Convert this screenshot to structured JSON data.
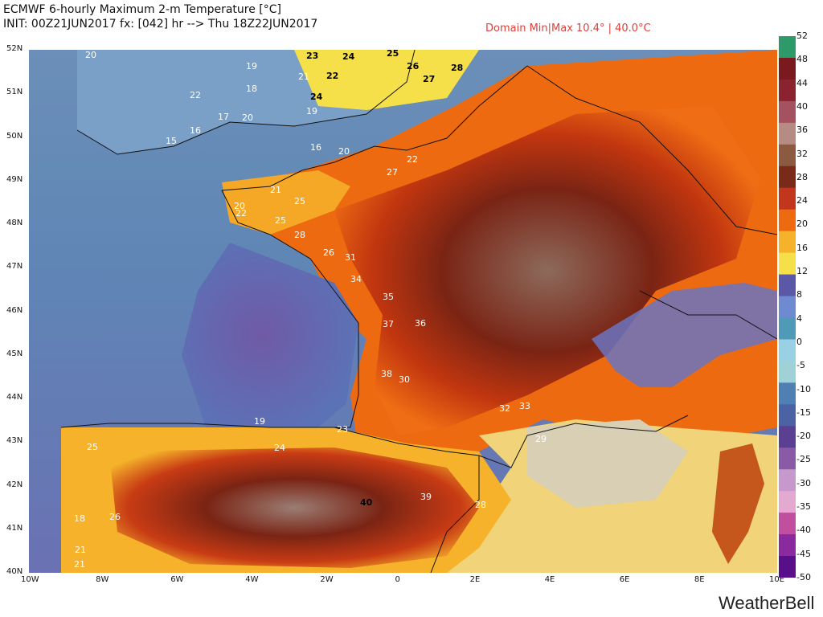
{
  "header": {
    "title_line1": "ECMWF 6-hourly Maximum 2-m Temperature [°C]",
    "title_line2": "INIT: 00Z21JUN2017 fx: [042] hr --> Thu 18Z22JUN2017",
    "domain_minmax": "Domain Min|Max 10.4° | 40.0°C"
  },
  "lat_labels": [
    "52N",
    "51N",
    "50N",
    "49N",
    "48N",
    "47N",
    "46N",
    "45N",
    "44N",
    "43N",
    "42N",
    "41N",
    "40N"
  ],
  "lon_labels": [
    "10W",
    "8W",
    "6W",
    "4W",
    "2W",
    "0",
    "2E",
    "4E",
    "6E",
    "8E",
    "10E"
  ],
  "colorbar": {
    "ticks": [
      "52",
      "48",
      "44",
      "40",
      "36",
      "32",
      "28",
      "24",
      "20",
      "16",
      "12",
      "8",
      "4",
      "0",
      "-5",
      "-10",
      "-15",
      "-20",
      "-25",
      "-30",
      "-35",
      "-40",
      "-45",
      "-50"
    ],
    "colors": [
      "#2e9a6a",
      "#7a1a1f",
      "#8b2230",
      "#a4525f",
      "#b58b84",
      "#8b5a40",
      "#7a2a18",
      "#c3361e",
      "#ee6a10",
      "#f5b22a",
      "#f6e04a",
      "#5c58a8",
      "#6e8ad0",
      "#4f9ab6",
      "#9ad0e4",
      "#9fd2d6",
      "#4f7fb3",
      "#4b63a5",
      "#5a3f93",
      "#8a5aa6",
      "#c798cc",
      "#e3a9d0",
      "#c04f9f",
      "#8a2a9e",
      "#5a0f8a"
    ]
  },
  "map_labels": [
    {
      "t": "20",
      "c": "w"
    },
    {
      "t": "19",
      "c": "w"
    },
    {
      "t": "18",
      "c": "w"
    },
    {
      "t": "21",
      "c": "w"
    },
    {
      "t": "24",
      "c": "d"
    },
    {
      "t": "22",
      "c": "d"
    },
    {
      "t": "23",
      "c": "d"
    },
    {
      "t": "24",
      "c": "d"
    },
    {
      "t": "25",
      "c": "d"
    },
    {
      "t": "26",
      "c": "d"
    },
    {
      "t": "27",
      "c": "d"
    },
    {
      "t": "28",
      "c": "d"
    },
    {
      "t": "22",
      "c": "w"
    },
    {
      "t": "20",
      "c": "w"
    },
    {
      "t": "17",
      "c": "w"
    },
    {
      "t": "15",
      "c": "w"
    },
    {
      "t": "16",
      "c": "w"
    },
    {
      "t": "19",
      "c": "w"
    },
    {
      "t": "16",
      "c": "w"
    },
    {
      "t": "20",
      "c": "w"
    },
    {
      "t": "22",
      "c": "w"
    },
    {
      "t": "27",
      "c": "w"
    },
    {
      "t": "21",
      "c": "w"
    },
    {
      "t": "25",
      "c": "w"
    },
    {
      "t": "20",
      "c": "w"
    },
    {
      "t": "22",
      "c": "w"
    },
    {
      "t": "25",
      "c": "w"
    },
    {
      "t": "28",
      "c": "w"
    },
    {
      "t": "26",
      "c": "w"
    },
    {
      "t": "31",
      "c": "w"
    },
    {
      "t": "34",
      "c": "w"
    },
    {
      "t": "35",
      "c": "w"
    },
    {
      "t": "37",
      "c": "w"
    },
    {
      "t": "36",
      "c": "w"
    },
    {
      "t": "38",
      "c": "w"
    },
    {
      "t": "30",
      "c": "w"
    },
    {
      "t": "32",
      "c": "w"
    },
    {
      "t": "33",
      "c": "w"
    },
    {
      "t": "29",
      "c": "w"
    },
    {
      "t": "40",
      "c": "d"
    },
    {
      "t": "39",
      "c": "w"
    },
    {
      "t": "28",
      "c": "w"
    },
    {
      "t": "26",
      "c": "w"
    },
    {
      "t": "18",
      "c": "w"
    },
    {
      "t": "21",
      "c": "w"
    },
    {
      "t": "21",
      "c": "w"
    },
    {
      "t": "19",
      "c": "w"
    },
    {
      "t": "24",
      "c": "w"
    },
    {
      "t": "23",
      "c": "w"
    },
    {
      "t": "25",
      "c": "w"
    }
  ],
  "brand": "WeatherBell"
}
